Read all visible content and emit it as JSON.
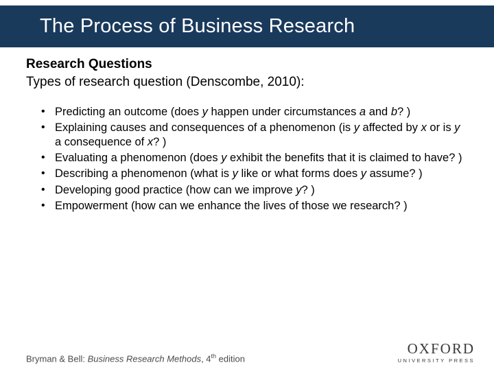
{
  "colors": {
    "titlebar_bg": "#1a3a5c",
    "title_text": "#ffffff",
    "body_text": "#000000",
    "footer_text": "#4a4a4a",
    "logo_text": "#3a3a3a",
    "page_bg": "#ffffff"
  },
  "typography": {
    "title_fontsize": 29,
    "heading_fontsize": 19,
    "intro_fontsize": 19,
    "bullet_fontsize": 16.5,
    "footer_fontsize": 13,
    "logo_main_fontsize": 21,
    "logo_sub_fontsize": 7.5
  },
  "title": "The Process of Business Research",
  "section_heading": "Research Questions",
  "intro": "Types of research question (Denscombe, 2010):",
  "bullets": [
    {
      "pre": "Predicting an outcome (does ",
      "i1": "y",
      "mid1": " happen under circumstances ",
      "i2": "a",
      "mid2": " and ",
      "i3": "b",
      "post": "? )"
    },
    {
      "pre": "Explaining causes and consequences of a phenomenon (is ",
      "i1": "y",
      "mid1": " affected by ",
      "i2": "x",
      "mid2": " or is ",
      "i3": "y",
      "mid3": " a consequence of ",
      "i4": "x",
      "post": "? )"
    },
    {
      "pre": "Evaluating a phenomenon (does ",
      "i1": "y",
      "post": " exhibit the benefits that it is claimed to have? )"
    },
    {
      "pre": "Describing a phenomenon (what is ",
      "i1": "y",
      "mid1": " like or what forms does ",
      "i2": "y",
      "post": " assume? )"
    },
    {
      "pre": "Developing good practice (how can we improve ",
      "i1": "y",
      "post": "? )"
    },
    {
      "pre": "Empowerment (how can we enhance the lives of those we research? )"
    }
  ],
  "footer": {
    "authors": "Bryman & Bell: ",
    "book": "Business Research Methods",
    "edition_pre": ", 4",
    "edition_sup": "th",
    "edition_post": " edition"
  },
  "logo": {
    "main": "OXFORD",
    "sub": "UNIVERSITY PRESS"
  }
}
